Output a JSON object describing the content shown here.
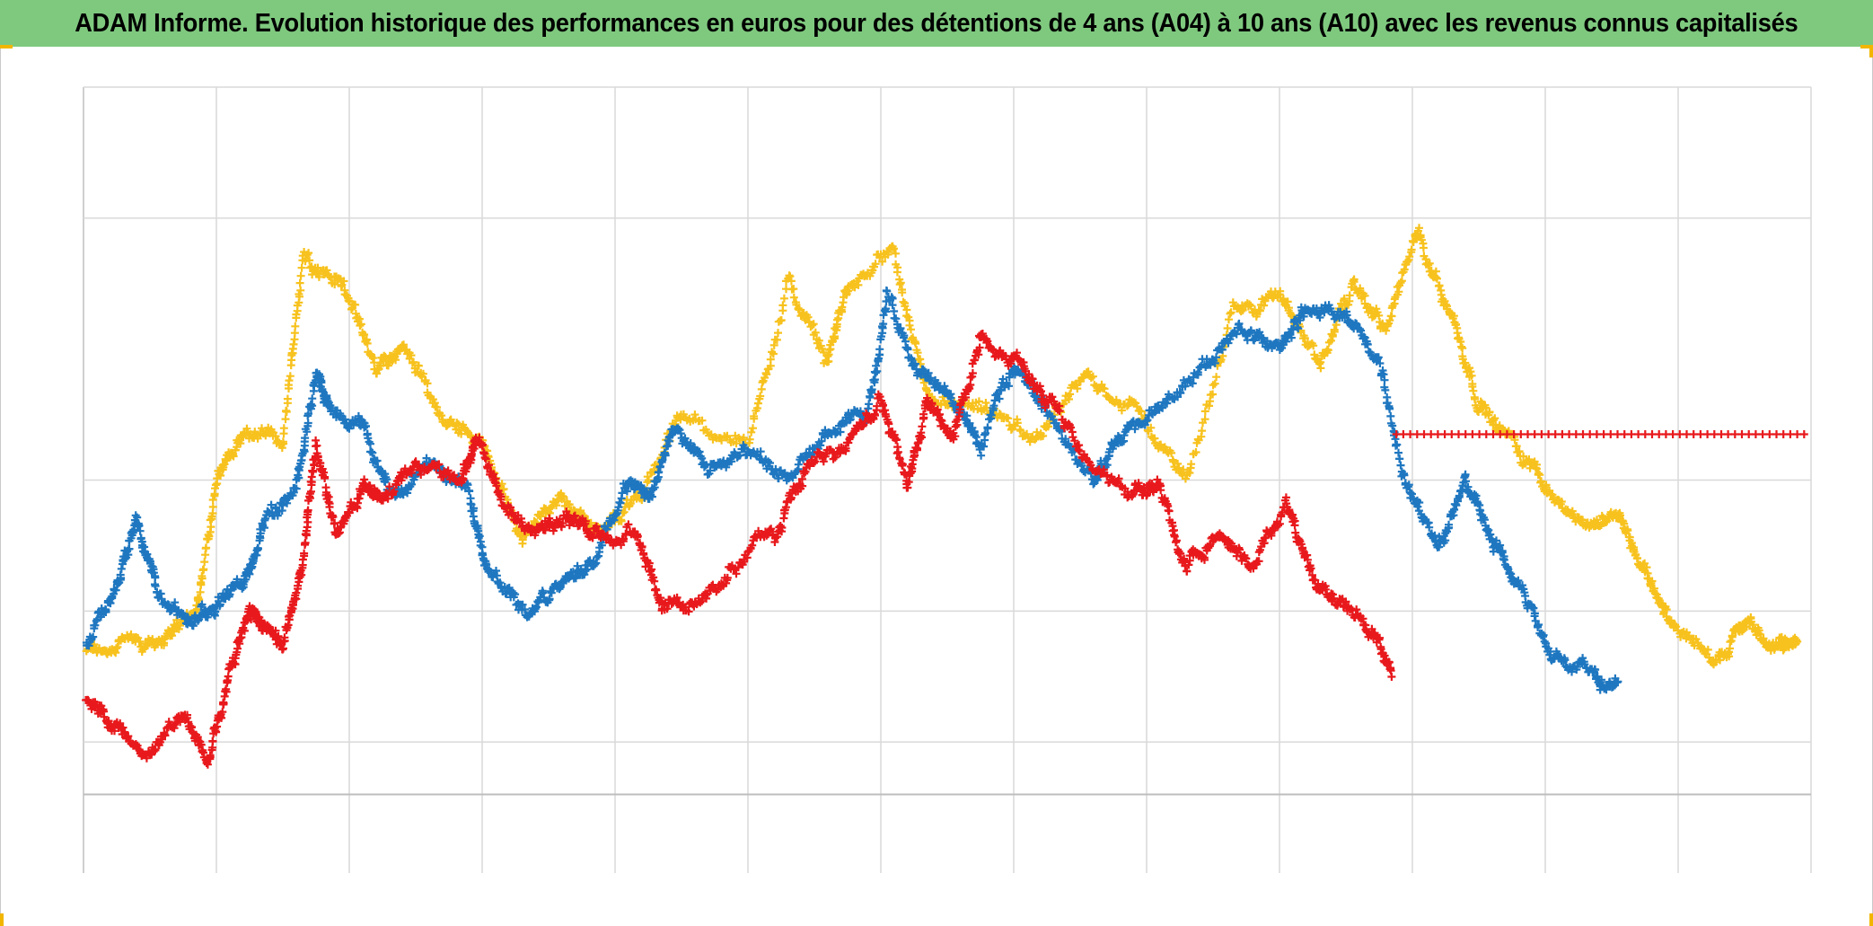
{
  "title": "ADAM Informe. Evolution historique des performances en euros pour des détentions de 4 ans (A04) à 10 ans (A10) avec les revenus connus capitalisés",
  "colors": {
    "title_bg": "#7fc97f",
    "grid": "#d9d9d9",
    "axis": "#bfbfbf",
    "corner_marks": "#f2b600"
  },
  "chart_data": {
    "type": "scatter",
    "marker": "plus",
    "xlabel": "",
    "ylabel": "",
    "x_tick_labels": [],
    "y_tick_labels": [],
    "xlim": [
      0,
      13
    ],
    "ylim": [
      0,
      6
    ],
    "x_gridlines": [
      0,
      1,
      2,
      3,
      4,
      5,
      6,
      7,
      8,
      9,
      10,
      11,
      12,
      13
    ],
    "y_gridlines": [
      0.6,
      1.0,
      2.0,
      3.0,
      5.0,
      6.0
    ],
    "baseline_y": 0.6,
    "grid": true,
    "legend": "none",
    "series": [
      {
        "color": "#f7c21e",
        "points_per_segment": 36,
        "noise": 0.06,
        "path": [
          [
            0.02,
            1.7
          ],
          [
            0.3,
            1.75
          ],
          [
            0.6,
            1.8
          ],
          [
            0.85,
            2.0
          ],
          [
            1.0,
            3.0
          ],
          [
            1.2,
            3.35
          ],
          [
            1.5,
            3.3
          ],
          [
            1.65,
            4.7
          ],
          [
            1.95,
            4.5
          ],
          [
            2.2,
            3.85
          ],
          [
            2.4,
            4.0
          ],
          [
            2.7,
            3.5
          ],
          [
            3.0,
            3.3
          ],
          [
            3.3,
            2.5
          ],
          [
            3.6,
            2.9
          ],
          [
            3.9,
            2.6
          ],
          [
            4.2,
            2.9
          ],
          [
            4.5,
            3.5
          ],
          [
            5.0,
            3.25
          ],
          [
            5.3,
            4.5
          ],
          [
            5.6,
            3.9
          ],
          [
            5.75,
            4.5
          ],
          [
            6.1,
            4.7
          ],
          [
            6.35,
            3.6
          ],
          [
            6.8,
            3.5
          ],
          [
            7.2,
            3.3
          ],
          [
            7.55,
            3.8
          ],
          [
            7.95,
            3.5
          ],
          [
            8.3,
            3.0
          ],
          [
            8.65,
            4.3
          ],
          [
            9.0,
            4.4
          ],
          [
            9.3,
            3.9
          ],
          [
            9.55,
            4.5
          ],
          [
            9.8,
            4.15
          ],
          [
            10.05,
            4.9
          ],
          [
            10.3,
            4.25
          ],
          [
            10.5,
            3.6
          ],
          [
            10.75,
            3.3
          ],
          [
            11.0,
            3.0
          ],
          [
            11.3,
            2.6
          ],
          [
            11.55,
            2.75
          ],
          [
            11.75,
            2.3
          ],
          [
            11.95,
            1.9
          ],
          [
            12.3,
            1.65
          ],
          [
            12.5,
            1.9
          ],
          [
            12.75,
            1.7
          ],
          [
            12.9,
            1.8
          ]
        ]
      },
      {
        "color": "#1f77c0",
        "points_per_segment": 36,
        "noise": 0.06,
        "path": [
          [
            0.02,
            1.75
          ],
          [
            0.25,
            2.2
          ],
          [
            0.4,
            2.7
          ],
          [
            0.55,
            2.15
          ],
          [
            0.8,
            1.9
          ],
          [
            1.0,
            2.05
          ],
          [
            1.2,
            2.2
          ],
          [
            1.35,
            2.65
          ],
          [
            1.6,
            2.9
          ],
          [
            1.75,
            3.8
          ],
          [
            1.85,
            3.6
          ],
          [
            2.1,
            3.4
          ],
          [
            2.3,
            2.9
          ],
          [
            2.6,
            3.1
          ],
          [
            2.9,
            2.9
          ],
          [
            3.05,
            2.35
          ],
          [
            3.35,
            1.95
          ],
          [
            3.6,
            2.25
          ],
          [
            3.85,
            2.4
          ],
          [
            4.1,
            3.0
          ],
          [
            4.25,
            2.85
          ],
          [
            4.45,
            3.4
          ],
          [
            4.7,
            3.05
          ],
          [
            5.0,
            3.2
          ],
          [
            5.3,
            3.0
          ],
          [
            5.6,
            3.35
          ],
          [
            5.9,
            3.5
          ],
          [
            6.05,
            4.4
          ],
          [
            6.3,
            3.8
          ],
          [
            6.55,
            3.6
          ],
          [
            6.75,
            3.25
          ],
          [
            7.0,
            3.9
          ],
          [
            7.25,
            3.55
          ],
          [
            7.6,
            3.0
          ],
          [
            7.8,
            3.3
          ],
          [
            8.1,
            3.55
          ],
          [
            8.45,
            3.9
          ],
          [
            8.75,
            4.15
          ],
          [
            9.0,
            4.0
          ],
          [
            9.2,
            4.35
          ],
          [
            9.5,
            4.25
          ],
          [
            9.75,
            3.9
          ],
          [
            9.95,
            2.95
          ],
          [
            10.2,
            2.5
          ],
          [
            10.4,
            3.0
          ],
          [
            10.6,
            2.5
          ],
          [
            10.8,
            2.2
          ],
          [
            11.05,
            1.7
          ],
          [
            11.35,
            1.5
          ],
          [
            11.55,
            1.45
          ]
        ]
      },
      {
        "color": "#e8191c",
        "points_per_segment": 36,
        "noise": 0.06,
        "path": [
          [
            0.02,
            1.35
          ],
          [
            0.25,
            1.1
          ],
          [
            0.5,
            0.9
          ],
          [
            0.75,
            1.2
          ],
          [
            0.95,
            0.85
          ],
          [
            1.1,
            1.55
          ],
          [
            1.25,
            2.0
          ],
          [
            1.35,
            1.9
          ],
          [
            1.5,
            1.75
          ],
          [
            1.65,
            2.35
          ],
          [
            1.75,
            3.3
          ],
          [
            1.9,
            2.6
          ],
          [
            2.1,
            2.95
          ],
          [
            2.25,
            2.85
          ],
          [
            2.5,
            3.1
          ],
          [
            2.85,
            3.0
          ],
          [
            2.95,
            3.3
          ],
          [
            3.15,
            2.85
          ],
          [
            3.4,
            2.6
          ],
          [
            3.65,
            2.7
          ],
          [
            3.85,
            2.55
          ],
          [
            4.15,
            2.6
          ],
          [
            4.35,
            2.05
          ],
          [
            4.65,
            2.05
          ],
          [
            4.95,
            2.4
          ],
          [
            5.25,
            2.65
          ],
          [
            5.45,
            3.15
          ],
          [
            5.75,
            3.25
          ],
          [
            6.0,
            3.65
          ],
          [
            6.2,
            3.0
          ],
          [
            6.35,
            3.6
          ],
          [
            6.55,
            3.35
          ],
          [
            6.75,
            4.1
          ],
          [
            7.0,
            3.95
          ],
          [
            7.25,
            3.6
          ],
          [
            7.55,
            3.1
          ],
          [
            7.9,
            2.9
          ],
          [
            8.1,
            2.95
          ],
          [
            8.3,
            2.35
          ],
          [
            8.55,
            2.6
          ],
          [
            8.8,
            2.35
          ],
          [
            9.05,
            2.85
          ],
          [
            9.25,
            2.2
          ],
          [
            9.45,
            2.05
          ],
          [
            9.7,
            1.85
          ],
          [
            9.85,
            1.55
          ]
        ]
      },
      {
        "color": "#e8191c",
        "points_per_segment": 60,
        "noise": 0.0,
        "path": [
          [
            9.88,
            3.35
          ],
          [
            13.0,
            3.35
          ]
        ]
      }
    ]
  }
}
